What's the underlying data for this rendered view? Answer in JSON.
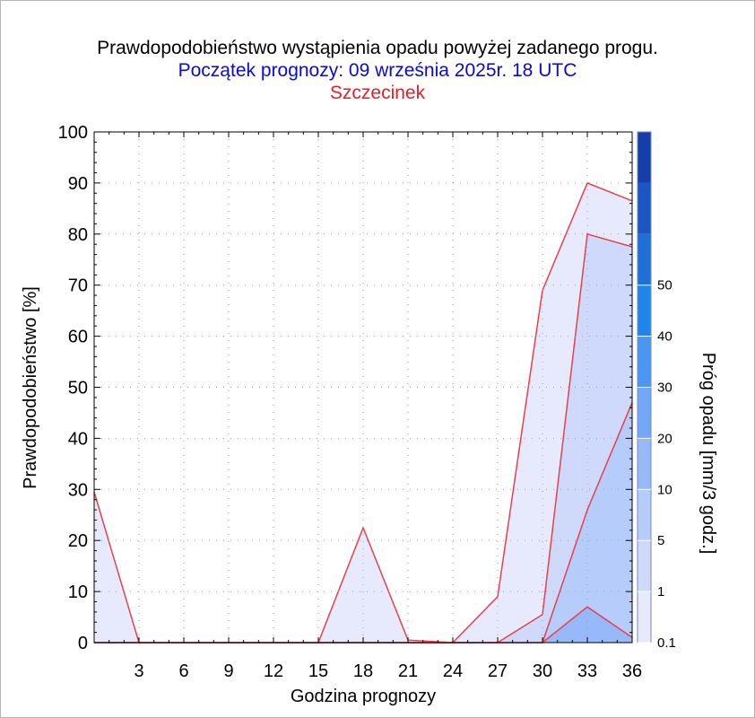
{
  "colors": {
    "title": "#000000",
    "subtitle": "#0a0ad6",
    "station": "#e3202a",
    "series_line": "#e8404a",
    "scale": [
      "#e6eafc",
      "#cfd9fb",
      "#b6ccfb",
      "#97b9fa",
      "#73a8f8",
      "#4a97f3",
      "#2085ea",
      "#1f6fd8",
      "#1b57c4",
      "#143fa8"
    ]
  },
  "chart_data": {
    "type": "area",
    "title": "Prawdopodobieństwo wystąpienia opadu powyżej zadanego progu.",
    "subtitle": "Początek prognozy: 09 września 2025r. 18 UTC",
    "station": "Szczecinek",
    "xlabel": "Godzina prognozy",
    "ylabel": "Prawdopodobieństwo [%]",
    "colorbar_label": "Próg opadu [mm/3 godz.]",
    "xlim": [
      0,
      36
    ],
    "ylim": [
      0,
      100
    ],
    "x_ticks": [
      "3",
      "6",
      "9",
      "12",
      "15",
      "18",
      "21",
      "24",
      "27",
      "30",
      "33",
      "36"
    ],
    "y_ticks": [
      "0",
      "10",
      "20",
      "30",
      "40",
      "50",
      "60",
      "70",
      "80",
      "90",
      "100"
    ],
    "grid": true,
    "x": [
      0,
      3,
      6,
      9,
      12,
      15,
      18,
      21,
      24,
      27,
      30,
      33,
      36
    ],
    "series": [
      {
        "threshold": "0.1",
        "values": [
          29.5,
          0,
          0,
          0,
          0,
          0,
          22.5,
          0.5,
          0,
          9,
          69,
          90,
          86.5
        ]
      },
      {
        "threshold": "1",
        "values": [
          0,
          0,
          0,
          0,
          0,
          0,
          0,
          0,
          0,
          0,
          5.5,
          80,
          77.5
        ]
      },
      {
        "threshold": "5",
        "values": [
          0,
          0,
          0,
          0,
          0,
          0,
          0,
          0,
          0,
          0,
          0,
          26,
          47
        ]
      },
      {
        "threshold": "10",
        "values": [
          0,
          0,
          0,
          0,
          0,
          0,
          0,
          0,
          0,
          0,
          0,
          7,
          1
        ]
      }
    ],
    "colorbar_levels": [
      "0.1",
      "1",
      "5",
      "10",
      "20",
      "30",
      "40",
      "50"
    ]
  }
}
